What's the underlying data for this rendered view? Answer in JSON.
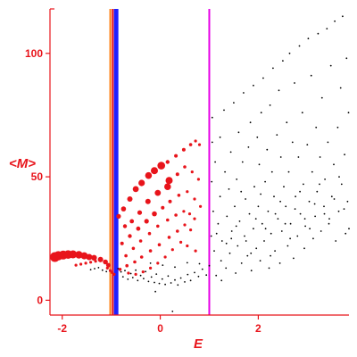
{
  "chart_data": {
    "type": "scatter",
    "title": "",
    "xlabel": "E",
    "ylabel": "<M>",
    "xlim": [
      -2.25,
      3.85
    ],
    "ylim": [
      -6,
      118
    ],
    "x_ticks": [
      -2,
      0,
      2
    ],
    "x_tick_labels": [
      "-2",
      "0",
      "2"
    ],
    "y_ticks": [
      0,
      50,
      100
    ],
    "y_tick_labels": [
      "0",
      "50",
      "100"
    ],
    "grid": false,
    "legend": "none",
    "colors": {
      "axis": "#e8141b",
      "highlight_points": "#e8141b",
      "background_points": "#000000",
      "line_orange": "#ff7f0e",
      "line_red": "#e8141b",
      "line_blue": "#1f1fff",
      "line_magenta": "#e600e6"
    },
    "vertical_lines": [
      {
        "x": -1.02,
        "color": "#ff7f0e",
        "width": 2
      },
      {
        "x": -0.97,
        "color": "#e8141b",
        "width": 2
      },
      {
        "x": -0.9,
        "color": "#1f1fff",
        "width": 5
      },
      {
        "x": 1.0,
        "color": "#e600e6",
        "width": 2
      }
    ],
    "series": [
      {
        "color": "#e8141b",
        "marker": "circle",
        "points": [
          [
            -2.15,
            17.5,
            5.5
          ],
          [
            -2.08,
            18.0,
            5.2
          ],
          [
            -1.98,
            18.3,
            5
          ],
          [
            -1.88,
            18.5,
            4.8
          ],
          [
            -1.78,
            18.6,
            4.5
          ],
          [
            -1.66,
            18.4,
            4.2
          ],
          [
            -1.55,
            18.0,
            4
          ],
          [
            -1.45,
            17.5,
            3.5
          ],
          [
            -1.35,
            17.2,
            3.2
          ],
          [
            -1.22,
            16.5,
            3
          ],
          [
            -1.12,
            15.5,
            2.8
          ],
          [
            -1.06,
            14.2,
            2.5
          ],
          [
            -1.72,
            14.2,
            1.6
          ],
          [
            -1.62,
            14.6,
            1.6
          ],
          [
            -1.52,
            15.0,
            1.6
          ],
          [
            -1.42,
            15.4,
            1.6
          ],
          [
            -1.32,
            15.8,
            1.6
          ],
          [
            -1.22,
            16.0,
            1.6
          ],
          [
            -1.12,
            15.8,
            1.6
          ],
          [
            -1.08,
            13.0,
            1.6
          ],
          [
            -1.02,
            12.0,
            1.6
          ],
          [
            -0.98,
            11.2,
            1.6
          ],
          [
            -0.94,
            10.5,
            1.6
          ],
          [
            -0.85,
            34.0,
            2.6
          ],
          [
            -0.75,
            37.0,
            2.8
          ],
          [
            -0.62,
            41.0,
            3
          ],
          [
            -0.5,
            45.0,
            3.4
          ],
          [
            -0.38,
            47.5,
            3.6
          ],
          [
            -0.24,
            50.5,
            3.8
          ],
          [
            -0.12,
            52.5,
            4
          ],
          [
            0.02,
            54.5,
            4.3
          ],
          [
            0.15,
            56.0,
            2.2
          ],
          [
            0.32,
            58.5,
            2
          ],
          [
            0.48,
            61.0,
            2
          ],
          [
            0.62,
            63.0,
            1.8
          ],
          [
            0.72,
            64.5,
            1.6
          ],
          [
            0.8,
            63.0,
            1.6
          ],
          [
            -0.72,
            30.0,
            2.2
          ],
          [
            -0.58,
            32.0,
            2.4
          ],
          [
            -0.42,
            35.5,
            2.6
          ],
          [
            -0.25,
            40.0,
            3
          ],
          [
            -0.05,
            43.5,
            3.4
          ],
          [
            0.15,
            46.0,
            3.8
          ],
          [
            0.18,
            48.5,
            4
          ],
          [
            0.35,
            51.0,
            2
          ],
          [
            0.5,
            54.0,
            1.8
          ],
          [
            0.65,
            52.0,
            1.6
          ],
          [
            0.78,
            49.0,
            1.6
          ],
          [
            -0.78,
            23.0,
            2
          ],
          [
            -0.62,
            26.0,
            2.2
          ],
          [
            -0.45,
            29.0,
            2.4
          ],
          [
            -0.28,
            32.0,
            2.6
          ],
          [
            -0.12,
            35.0,
            2.8
          ],
          [
            0.05,
            37.5,
            2
          ],
          [
            0.2,
            40.0,
            2
          ],
          [
            0.38,
            42.5,
            1.8
          ],
          [
            0.55,
            44.0,
            1.6
          ],
          [
            0.7,
            41.0,
            1.6
          ],
          [
            0.82,
            38.0,
            1.6
          ],
          [
            -0.7,
            18.0,
            1.8
          ],
          [
            -0.55,
            21.0,
            1.8
          ],
          [
            -0.4,
            24.0,
            1.8
          ],
          [
            -0.22,
            27.0,
            1.8
          ],
          [
            -0.05,
            30.0,
            1.8
          ],
          [
            0.15,
            32.5,
            1.8
          ],
          [
            0.32,
            34.5,
            1.8
          ],
          [
            0.48,
            36.0,
            1.6
          ],
          [
            0.6,
            35.0,
            1.6
          ],
          [
            0.7,
            33.0,
            1.6
          ],
          [
            -0.82,
            12.5,
            1.8
          ],
          [
            -0.68,
            14.0,
            1.8
          ],
          [
            -0.52,
            15.5,
            1.8
          ],
          [
            -0.38,
            17.5,
            1.8
          ],
          [
            -0.2,
            20.0,
            1.8
          ],
          [
            -0.02,
            22.5,
            1.8
          ],
          [
            0.18,
            25.5,
            1.8
          ],
          [
            0.35,
            28.0,
            1.8
          ],
          [
            0.5,
            30.5,
            1.6
          ],
          [
            0.62,
            28.5,
            1.6
          ],
          [
            -0.65,
            11.0,
            1.6
          ],
          [
            -0.5,
            10.5,
            1.6
          ],
          [
            -0.35,
            11.5,
            1.6
          ],
          [
            -0.2,
            13.0,
            1.6
          ],
          [
            -0.05,
            15.0,
            1.6
          ],
          [
            0.1,
            17.5,
            1.6
          ],
          [
            0.25,
            20.5,
            1.6
          ],
          [
            0.42,
            23.5,
            1.6
          ],
          [
            0.55,
            22.0,
            1.6
          ],
          [
            0.72,
            20.0,
            1.6
          ]
        ]
      },
      {
        "color": "#000000",
        "marker": "dot",
        "points": [
          [
            -0.86,
            12.8
          ],
          [
            -0.8,
            11.5
          ],
          [
            -0.76,
            9.5
          ],
          [
            -0.72,
            12.0
          ],
          [
            -0.66,
            8.5
          ],
          [
            -0.6,
            10.8
          ],
          [
            -0.56,
            9.2
          ],
          [
            -0.5,
            12.2
          ],
          [
            -0.46,
            8.0
          ],
          [
            -0.4,
            10.0
          ],
          [
            -0.34,
            8.8
          ],
          [
            -0.3,
            11.6
          ],
          [
            -0.24,
            7.6
          ],
          [
            -0.18,
            9.4
          ],
          [
            -0.12,
            7.2
          ],
          [
            -0.08,
            10.6
          ],
          [
            -0.02,
            6.8
          ],
          [
            0.04,
            8.6
          ],
          [
            0.1,
            6.4
          ],
          [
            0.16,
            9.8
          ],
          [
            0.22,
            7.0
          ],
          [
            0.3,
            8.2
          ],
          [
            0.36,
            6.2
          ],
          [
            0.42,
            9.0
          ],
          [
            0.5,
            7.4
          ],
          [
            0.56,
            10.4
          ],
          [
            0.62,
            8.0
          ],
          [
            0.7,
            11.2
          ],
          [
            0.78,
            9.6
          ],
          [
            0.86,
            12.6
          ],
          [
            0.94,
            10.2
          ],
          [
            -0.2,
            15.0
          ],
          [
            0.05,
            14.2
          ],
          [
            0.3,
            13.4
          ],
          [
            0.55,
            15.2
          ],
          [
            0.8,
            14.8
          ],
          [
            -0.1,
            3.5
          ],
          [
            0.25,
            -4.5
          ],
          [
            -1.42,
            12.4
          ],
          [
            -1.34,
            12.8
          ],
          [
            -1.26,
            13.2
          ],
          [
            -1.18,
            12.2
          ],
          [
            -1.1,
            11.6
          ],
          [
            1.0,
            14.0
          ],
          [
            1.04,
            26.0
          ],
          [
            1.05,
            48.0
          ],
          [
            1.06,
            64.0
          ],
          [
            1.06,
            74.0
          ],
          [
            1.08,
            36.0
          ],
          [
            1.1,
            20.0
          ],
          [
            1.12,
            56.0
          ],
          [
            1.14,
            10.0
          ],
          [
            1.18,
            31.0
          ],
          [
            1.22,
            42.0
          ],
          [
            1.22,
            66.0
          ],
          [
            1.24,
            16.0
          ],
          [
            1.26,
            24.0
          ],
          [
            1.3,
            77.0
          ],
          [
            1.32,
            52.0
          ],
          [
            1.34,
            13.0
          ],
          [
            1.36,
            34.0
          ],
          [
            1.4,
            45.0
          ],
          [
            1.42,
            19.0
          ],
          [
            1.44,
            60.0
          ],
          [
            1.46,
            28.0
          ],
          [
            1.5,
            80.0
          ],
          [
            1.52,
            38.0
          ],
          [
            1.54,
            11.0
          ],
          [
            1.56,
            49.0
          ],
          [
            1.58,
            22.0
          ],
          [
            1.6,
            68.0
          ],
          [
            1.62,
            32.0
          ],
          [
            1.66,
            15.0
          ],
          [
            1.68,
            56.0
          ],
          [
            1.7,
            84.0
          ],
          [
            1.72,
            26.0
          ],
          [
            1.74,
            41.0
          ],
          [
            1.78,
            18.0
          ],
          [
            1.8,
            62.0
          ],
          [
            1.82,
            35.0
          ],
          [
            1.84,
            72.0
          ],
          [
            1.86,
            12.0
          ],
          [
            1.9,
            29.0
          ],
          [
            1.9,
            87.0
          ],
          [
            1.92,
            46.0
          ],
          [
            1.96,
            21.0
          ],
          [
            1.98,
            66.0
          ],
          [
            2.0,
            38.0
          ],
          [
            2.02,
            55.0
          ],
          [
            2.04,
            16.0
          ],
          [
            2.06,
            76.0
          ],
          [
            2.08,
            31.0
          ],
          [
            2.1,
            90.0
          ],
          [
            2.12,
            24.0
          ],
          [
            2.14,
            48.0
          ],
          [
            2.18,
            61.0
          ],
          [
            2.2,
            36.0
          ],
          [
            2.22,
            13.0
          ],
          [
            2.24,
            79.0
          ],
          [
            2.26,
            27.0
          ],
          [
            2.28,
            52.0
          ],
          [
            2.3,
            94.0
          ],
          [
            2.32,
            42.0
          ],
          [
            2.34,
            20.0
          ],
          [
            2.38,
            67.0
          ],
          [
            2.4,
            33.0
          ],
          [
            2.42,
            85.0
          ],
          [
            2.44,
            15.0
          ],
          [
            2.46,
            58.0
          ],
          [
            2.48,
            28.0
          ],
          [
            2.5,
            97.0
          ],
          [
            2.52,
            46.0
          ],
          [
            2.56,
            38.0
          ],
          [
            2.58,
            72.0
          ],
          [
            2.6,
            22.0
          ],
          [
            2.62,
            52.0
          ],
          [
            2.64,
            100.0
          ],
          [
            2.66,
            31.0
          ],
          [
            2.7,
            64.0
          ],
          [
            2.72,
            17.0
          ],
          [
            2.74,
            88.0
          ],
          [
            2.76,
            42.0
          ],
          [
            2.8,
            26.0
          ],
          [
            2.82,
            58.0
          ],
          [
            2.84,
            103.0
          ],
          [
            2.86,
            35.0
          ],
          [
            2.9,
            76.0
          ],
          [
            2.92,
            47.0
          ],
          [
            2.94,
            21.0
          ],
          [
            2.96,
            30.0
          ],
          [
            3.0,
            63.0
          ],
          [
            3.02,
            106.0
          ],
          [
            3.04,
            40.0
          ],
          [
            3.08,
            91.0
          ],
          [
            3.1,
            52.0
          ],
          [
            3.12,
            25.0
          ],
          [
            3.16,
            34.0
          ],
          [
            3.18,
            70.0
          ],
          [
            3.2,
            44.0
          ],
          [
            3.22,
            108.0
          ],
          [
            3.26,
            58.0
          ],
          [
            3.28,
            28.0
          ],
          [
            3.3,
            82.0
          ],
          [
            3.34,
            38.0
          ],
          [
            3.36,
            49.0
          ],
          [
            3.4,
            110.0
          ],
          [
            3.42,
            64.0
          ],
          [
            3.44,
            31.0
          ],
          [
            3.48,
            95.0
          ],
          [
            3.5,
            42.0
          ],
          [
            3.54,
            55.0
          ],
          [
            3.56,
            113.0
          ],
          [
            3.58,
            24.0
          ],
          [
            3.62,
            70.0
          ],
          [
            3.64,
            36.0
          ],
          [
            3.68,
            86.0
          ],
          [
            3.7,
            47.0
          ],
          [
            3.72,
            115.0
          ],
          [
            3.76,
            59.0
          ],
          [
            3.78,
            27.0
          ],
          [
            3.8,
            98.0
          ],
          [
            3.82,
            40.0
          ],
          [
            3.84,
            76.0
          ],
          [
            1.15,
            27.0
          ],
          [
            1.35,
            23.0
          ],
          [
            1.55,
            30.0
          ],
          [
            1.75,
            24.0
          ],
          [
            1.95,
            33.0
          ],
          [
            2.15,
            29.0
          ],
          [
            2.35,
            35.0
          ],
          [
            2.55,
            31.0
          ],
          [
            2.75,
            37.0
          ],
          [
            2.95,
            33.0
          ],
          [
            3.15,
            39.0
          ],
          [
            3.35,
            35.0
          ],
          [
            3.55,
            41.0
          ],
          [
            3.75,
            37.0
          ],
          [
            1.25,
            8.0
          ],
          [
            1.45,
            25.0
          ],
          [
            1.65,
            44.0
          ],
          [
            1.85,
            19.0
          ],
          [
            2.05,
            43.0
          ],
          [
            2.25,
            18.0
          ],
          [
            2.45,
            40.0
          ],
          [
            2.65,
            25.0
          ],
          [
            2.85,
            44.0
          ],
          [
            3.05,
            29.0
          ],
          [
            3.25,
            47.0
          ],
          [
            3.45,
            33.0
          ],
          [
            3.65,
            50.0
          ],
          [
            3.85,
            29.0
          ]
        ]
      }
    ]
  }
}
